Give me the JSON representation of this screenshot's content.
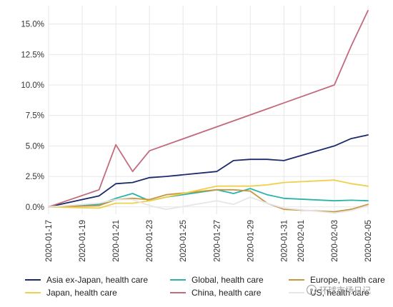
{
  "chart_data": {
    "type": "line",
    "title": "",
    "xlabel": "",
    "ylabel": "",
    "x": [
      "2020-01-17",
      "2020-01-18",
      "2020-01-19",
      "2020-01-20",
      "2020-01-21",
      "2020-01-22",
      "2020-01-23",
      "2020-01-24",
      "2020-01-25",
      "2020-01-26",
      "2020-01-27",
      "2020-01-28",
      "2020-01-29",
      "2020-01-30",
      "2020-01-31",
      "2020-02-01",
      "2020-02-02",
      "2020-02-03",
      "2020-02-04",
      "2020-02-05"
    ],
    "x_tick_labels": [
      "2020-01-17",
      "2020-01-19",
      "2020-01-21",
      "2020-01-23",
      "2020-01-25",
      "2020-01-27",
      "2020-01-29",
      "2020-01-31",
      "2020-02-01",
      "2020-02-03",
      "2020-02-05"
    ],
    "x_tick_values": [
      "2020-01-17",
      "2020-01-19",
      "2020-01-21",
      "2020-01-23",
      "2020-01-25",
      "2020-01-27",
      "2020-01-29",
      "2020-01-31",
      "2020-02-01",
      "2020-02-03",
      "2020-02-05"
    ],
    "y_tick_labels": [
      "0.0%",
      "2.5%",
      "5.0%",
      "7.5%",
      "10.0%",
      "12.5%",
      "15.0%"
    ],
    "y_tick_values": [
      0,
      2.5,
      5,
      7.5,
      10,
      12.5,
      15
    ],
    "ylim": [
      -0.6,
      16.5
    ],
    "grid": true,
    "legend_position": "bottom",
    "series": [
      {
        "name": "Asia ex-Japan, health care",
        "color": "#1b2a6b",
        "points": [
          [
            "2020-01-17",
            0
          ],
          [
            "2020-01-20",
            0.9
          ],
          [
            "2020-01-21",
            1.9
          ],
          [
            "2020-01-22",
            2.0
          ],
          [
            "2020-01-23",
            2.4
          ],
          [
            "2020-01-24",
            2.5
          ],
          [
            "2020-01-27",
            2.9
          ],
          [
            "2020-01-28",
            3.8
          ],
          [
            "2020-01-29",
            3.9
          ],
          [
            "2020-01-30",
            3.9
          ],
          [
            "2020-01-31",
            3.8
          ],
          [
            "2020-02-03",
            5.0
          ],
          [
            "2020-02-04",
            5.6
          ],
          [
            "2020-02-05",
            5.9
          ]
        ]
      },
      {
        "name": "Global, health care",
        "color": "#2bb3aa",
        "points": [
          [
            "2020-01-17",
            0
          ],
          [
            "2020-01-20",
            0.2
          ],
          [
            "2020-01-21",
            0.7
          ],
          [
            "2020-01-22",
            1.1
          ],
          [
            "2020-01-23",
            0.5
          ],
          [
            "2020-01-24",
            0.8
          ],
          [
            "2020-01-27",
            1.4
          ],
          [
            "2020-01-28",
            1.1
          ],
          [
            "2020-01-29",
            1.5
          ],
          [
            "2020-01-30",
            1.0
          ],
          [
            "2020-01-31",
            0.7
          ],
          [
            "2020-02-03",
            0.5
          ],
          [
            "2020-02-04",
            0.55
          ],
          [
            "2020-02-05",
            0.5
          ]
        ]
      },
      {
        "name": "Europe, health care",
        "color": "#c8963e",
        "points": [
          [
            "2020-01-17",
            0
          ],
          [
            "2020-01-20",
            0.1
          ],
          [
            "2020-01-21",
            0.6
          ],
          [
            "2020-01-22",
            0.7
          ],
          [
            "2020-01-23",
            0.6
          ],
          [
            "2020-01-24",
            1.0
          ],
          [
            "2020-01-27",
            1.4
          ],
          [
            "2020-01-28",
            1.4
          ],
          [
            "2020-01-29",
            1.3
          ],
          [
            "2020-01-30",
            0.3
          ],
          [
            "2020-01-31",
            -0.2
          ],
          [
            "2020-02-03",
            -0.4
          ],
          [
            "2020-02-04",
            -0.2
          ],
          [
            "2020-02-05",
            0.2
          ]
        ]
      },
      {
        "name": "Japan, health care",
        "color": "#f0cf4a",
        "points": [
          [
            "2020-01-17",
            0
          ],
          [
            "2020-01-20",
            -0.1
          ],
          [
            "2020-01-21",
            0.3
          ],
          [
            "2020-01-22",
            0.3
          ],
          [
            "2020-01-23",
            0.5
          ],
          [
            "2020-01-24",
            0.8
          ],
          [
            "2020-01-27",
            1.7
          ],
          [
            "2020-01-28",
            1.7
          ],
          [
            "2020-01-29",
            1.7
          ],
          [
            "2020-01-30",
            1.8
          ],
          [
            "2020-01-31",
            2.0
          ],
          [
            "2020-02-03",
            2.2
          ],
          [
            "2020-02-04",
            1.9
          ],
          [
            "2020-02-05",
            1.7
          ]
        ]
      },
      {
        "name": "China, health care",
        "color": "#c46a7d",
        "points": [
          [
            "2020-01-17",
            0
          ],
          [
            "2020-01-20",
            1.4
          ],
          [
            "2020-01-21",
            5.1
          ],
          [
            "2020-01-22",
            2.9
          ],
          [
            "2020-01-23",
            4.6
          ],
          [
            "2020-02-03",
            10.0
          ],
          [
            "2020-02-04",
            13.2
          ],
          [
            "2020-02-05",
            16.1
          ]
        ]
      },
      {
        "name": "US, health care",
        "color": "#e6e6e6",
        "points": [
          [
            "2020-01-17",
            0
          ],
          [
            "2020-01-20",
            0.3
          ],
          [
            "2020-01-21",
            0.6
          ],
          [
            "2020-01-22",
            0.6
          ],
          [
            "2020-01-23",
            0.1
          ],
          [
            "2020-01-24",
            -0.2
          ],
          [
            "2020-01-27",
            0.5
          ],
          [
            "2020-01-28",
            0.2
          ],
          [
            "2020-01-29",
            0.8
          ],
          [
            "2020-01-30",
            0.3
          ],
          [
            "2020-01-31",
            -0.1
          ],
          [
            "2020-02-03",
            -0.5
          ],
          [
            "2020-02-04",
            -0.3
          ],
          [
            "2020-02-05",
            0.1
          ]
        ]
      }
    ]
  },
  "watermark": {
    "text": "环球市场日记"
  }
}
